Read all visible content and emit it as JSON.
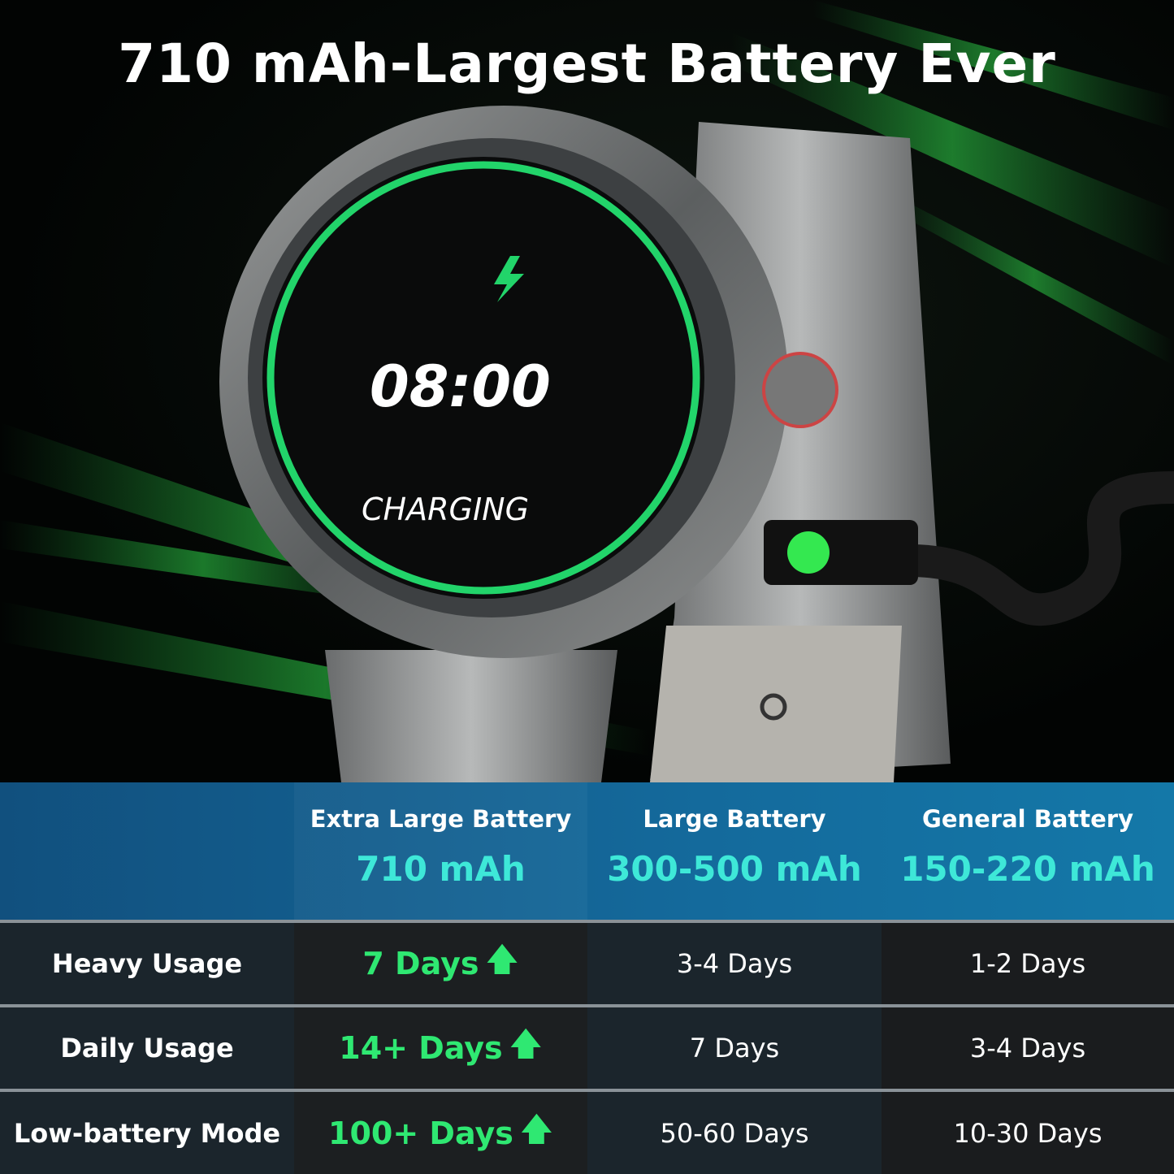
{
  "headline": "710 mAh-Largest Battery Ever",
  "watch": {
    "time": "08:00",
    "status": "CHARGING",
    "icon": "lightning-bolt-icon",
    "ring_color": "#22d46a"
  },
  "table": {
    "columns": [
      {
        "name": "Extra Large Battery",
        "capacity": "710 mAh"
      },
      {
        "name": "Large Battery",
        "capacity": "300-500 mAh"
      },
      {
        "name": "General Battery",
        "capacity": "150-220 mAh"
      }
    ],
    "rows": [
      {
        "label": "Heavy Usage",
        "values": [
          "7 Days",
          "3-4 Days",
          "1-2 Days"
        ]
      },
      {
        "label": "Daily Usage",
        "values": [
          "14+ Days",
          "7 Days",
          "3-4 Days"
        ]
      },
      {
        "label": "Low-battery Mode",
        "values": [
          "100+ Days",
          "50-60 Days",
          "10-30 Days"
        ]
      }
    ],
    "highlight_color": "#2fe872",
    "capacity_color": "#3ee8d8"
  }
}
